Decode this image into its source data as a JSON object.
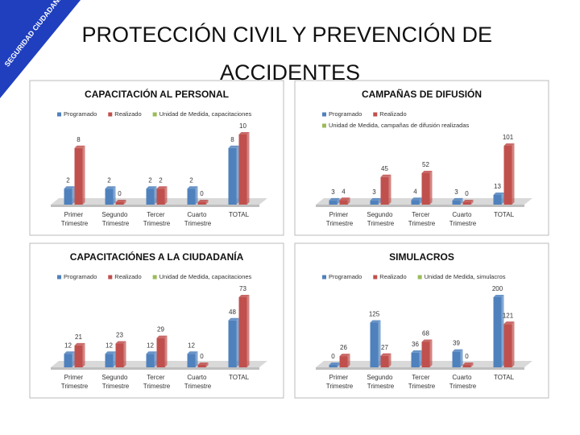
{
  "title": "PROTECCIÓN CIVIL Y PREVENCIÓN DE ACCIDENTES",
  "logo": "SEGURIDAD CIUDADANA",
  "chart_data": [
    {
      "type": "bar",
      "title": "CAPACITACIÓN AL PERSONAL",
      "categories": [
        "Primer Trimestre",
        "Segundo Trimestre",
        "Tercer Trimestre",
        "Cuarto Trimestre",
        "TOTAL"
      ],
      "series": [
        {
          "name": "Programado",
          "color": "#4f81bd",
          "values": [
            2,
            2,
            2,
            2,
            8
          ]
        },
        {
          "name": "Realizado",
          "color": "#c0504d",
          "values": [
            8,
            0,
            2,
            0,
            10
          ]
        },
        {
          "name": "Unidad de Medida, capacitaciones",
          "color": "#9bbb59",
          "values": [
            null,
            null,
            null,
            null,
            null
          ]
        }
      ]
    },
    {
      "type": "bar",
      "title": "CAMPAÑAS DE DIFUSIÓN",
      "categories": [
        "Primer Trimestre",
        "Segundo Trimestre",
        "Tercer Trimestre",
        "Cuarto Trimestre",
        "TOTAL"
      ],
      "series": [
        {
          "name": "Programado",
          "color": "#4f81bd",
          "values": [
            3,
            3,
            4,
            3,
            13
          ]
        },
        {
          "name": "Realizado",
          "color": "#c0504d",
          "values": [
            4,
            45,
            52,
            0,
            101
          ]
        },
        {
          "name": "Unidad de Medida, campañas de difusión realizadas",
          "color": "#9bbb59",
          "values": [
            null,
            null,
            null,
            null,
            null
          ]
        }
      ]
    },
    {
      "type": "bar",
      "title": "CAPACITACIÓNES A LA CIUDADANÍA",
      "categories": [
        "Primer Trimestre",
        "Segundo Trimestre",
        "Tercer Trimestre",
        "Cuarto Trimestre",
        "TOTAL"
      ],
      "series": [
        {
          "name": "Programado",
          "color": "#4f81bd",
          "values": [
            12,
            12,
            12,
            12,
            48
          ]
        },
        {
          "name": "Realizado",
          "color": "#c0504d",
          "values": [
            21,
            23,
            29,
            0,
            73
          ]
        },
        {
          "name": "Unidad de Medida, capacitaciones",
          "color": "#9bbb59",
          "values": [
            null,
            null,
            null,
            null,
            null
          ]
        }
      ]
    },
    {
      "type": "bar",
      "title": "SIMULACROS",
      "categories": [
        "Primer Trimestre",
        "Segundo Trimestre",
        "Tercer Trimestre",
        "Cuarto Trimestre",
        "TOTAL"
      ],
      "series": [
        {
          "name": "Programado",
          "color": "#4f81bd",
          "values": [
            0,
            125,
            36,
            39,
            200
          ]
        },
        {
          "name": "Realizado",
          "color": "#c0504d",
          "values": [
            26,
            27,
            68,
            0,
            121
          ]
        },
        {
          "name": "Unidad de Medida, simulacros",
          "color": "#9bbb59",
          "values": [
            null,
            null,
            null,
            null,
            null
          ]
        }
      ]
    }
  ]
}
